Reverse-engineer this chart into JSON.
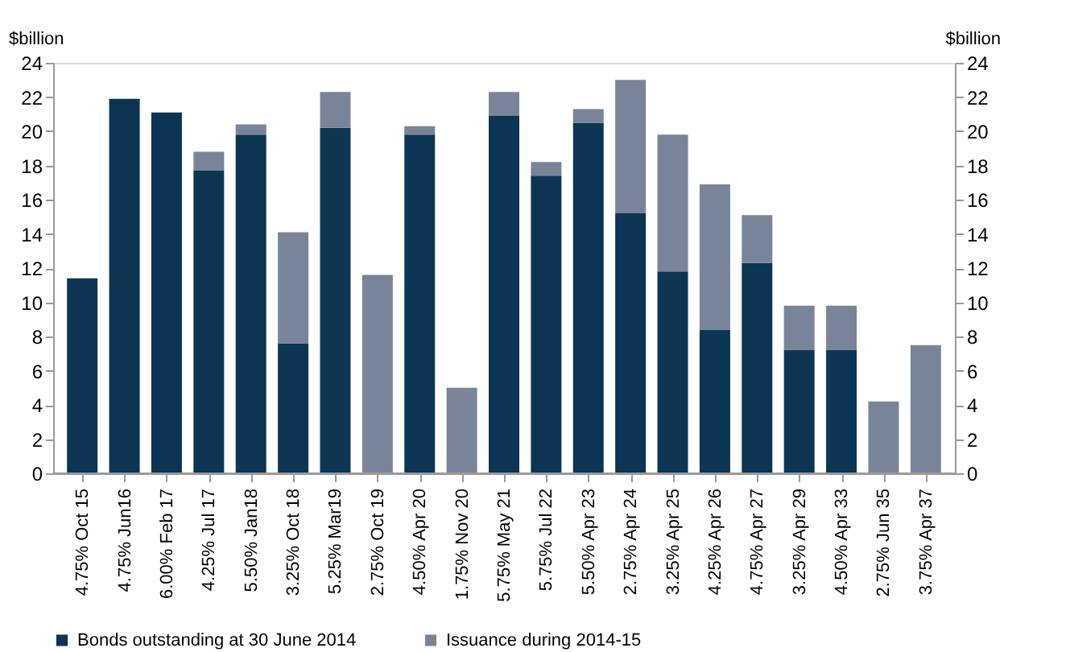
{
  "chart_data": {
    "type": "bar",
    "stacked": true,
    "ylabel": "$billion",
    "y2label": "$billion",
    "categories": [
      "4.75% Oct 15",
      "4.75% Jun16",
      "6.00% Feb 17",
      "4.25% Jul 17",
      "5.50% Jan18",
      "3.25% Oct 18",
      "5.25% Mar19",
      "2.75% Oct 19",
      "4.50%  Apr 20",
      "1.75% Nov 20",
      "5.75% May 21",
      "5.75% Jul 22",
      "5.50% Apr 23",
      "2.75% Apr 24",
      "3.25% Apr 25",
      "4.25% Apr 26",
      "4.75% Apr 27",
      "3.25% Apr 29",
      "4.50% Apr 33",
      "2.75% Jun 35",
      "3.75% Apr 37"
    ],
    "series": [
      {
        "name": "Bonds outstanding at 30 June 2014",
        "color": "#0b3553",
        "values": [
          11.4,
          21.9,
          21.1,
          17.7,
          19.8,
          7.6,
          20.2,
          null,
          19.8,
          null,
          20.9,
          17.4,
          20.5,
          15.2,
          11.8,
          8.4,
          12.3,
          7.2,
          7.2,
          null,
          null
        ]
      },
      {
        "name": "Issuance during 2014-15",
        "color": "#7a8499",
        "values": [
          null,
          null,
          null,
          1.1,
          0.6,
          6.5,
          2.1,
          11.6,
          0.5,
          5.0,
          1.4,
          0.8,
          0.8,
          7.8,
          8.0,
          8.5,
          2.8,
          2.6,
          2.6,
          4.2,
          7.5
        ]
      }
    ],
    "ylim": [
      0,
      24
    ],
    "yticks": [
      0,
      2,
      4,
      6,
      8,
      10,
      12,
      14,
      16,
      18,
      20,
      22,
      24
    ],
    "y2lim": [
      0,
      24
    ],
    "y2ticks": [
      0,
      2,
      4,
      6,
      8,
      10,
      12,
      14,
      16,
      18,
      20,
      22,
      24
    ],
    "grid": false,
    "legend": "bottom"
  }
}
